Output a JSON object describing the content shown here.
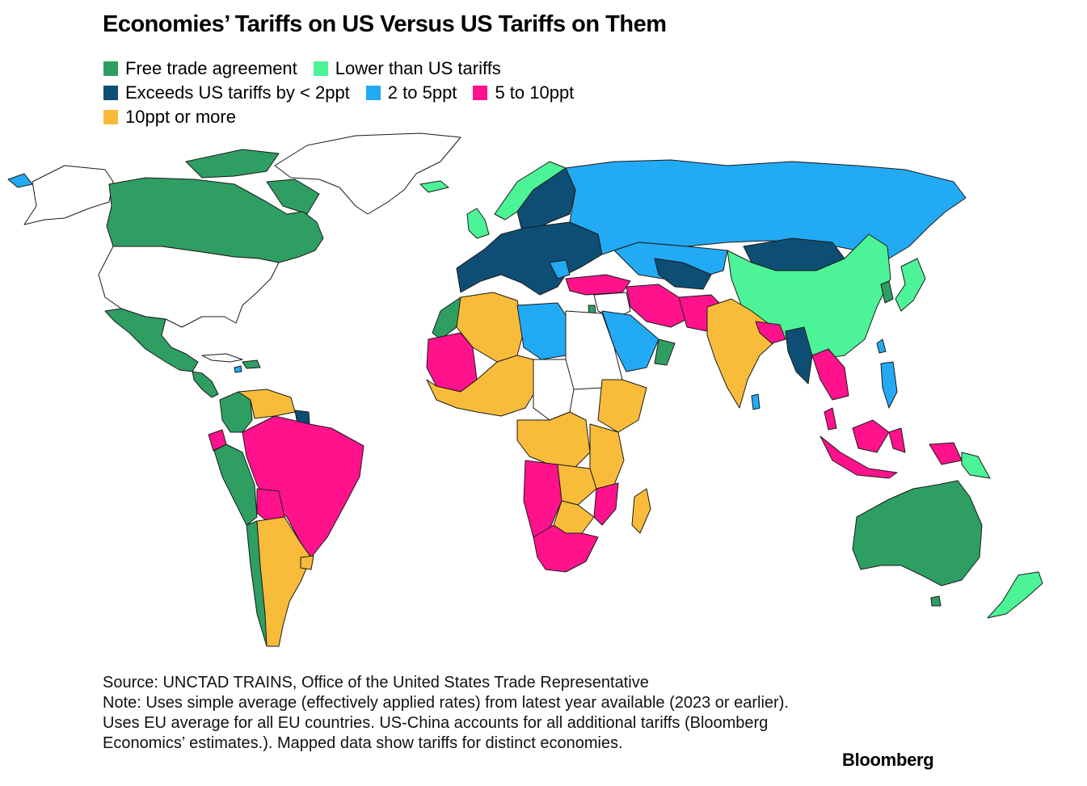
{
  "title": "Economies’ Tariffs on US Versus US Tariffs on Them",
  "legend": [
    {
      "label": "Free trade agreement",
      "color": "#2e9e63"
    },
    {
      "label": "Lower than US tariffs",
      "color": "#4cf497"
    },
    {
      "label": "Exceeds US tariffs by < 2ppt",
      "color": "#0e4e74"
    },
    {
      "label": "2 to 5ppt",
      "color": "#22aaf4"
    },
    {
      "label": "5 to 10ppt",
      "color": "#ff128c"
    },
    {
      "label": "10ppt or more",
      "color": "#f8bc3a"
    }
  ],
  "no_data_color": "#ffffff",
  "footer": {
    "source": "Source: UNCTAD TRAINS, Office of the United States Trade Representative",
    "note": "Note: Uses simple average (effectively applied rates) from latest year available (2023 or earlier). Uses EU average for all EU countries. US-China accounts for all additional tariffs (Bloomberg Economics’ estimates.). Mapped data show tariffs for distinct economies."
  },
  "brand": "Bloomberg"
}
